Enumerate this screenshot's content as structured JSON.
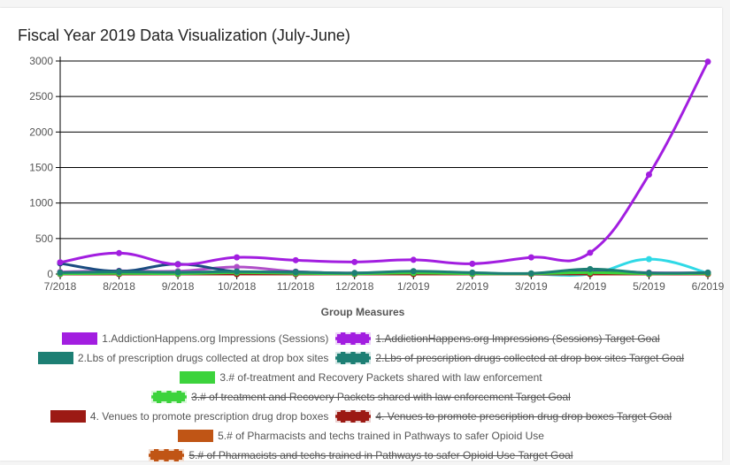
{
  "page_title": "Fiscal Year 2019 Data Visualization (July-June)",
  "chart_data": {
    "type": "line",
    "title": "Fiscal Year 2019 Data Visualization (July-June)",
    "xlabel": "Group Measures",
    "ylabel": "",
    "ylim": [
      0,
      3000
    ],
    "yticks": [
      0,
      500,
      1000,
      1500,
      2000,
      2500,
      3000
    ],
    "ytick_labels": [
      "0",
      "500",
      "1000",
      "1500",
      "2000",
      "2500",
      "3000"
    ],
    "grid": true,
    "legend_position": "bottom",
    "categories": [
      "7/2018",
      "8/2018",
      "9/2018",
      "10/2018",
      "11/2018",
      "12/2018",
      "1/2019",
      "2/2019",
      "3/2019",
      "4/2019",
      "5/2019",
      "6/2019"
    ],
    "series": [
      {
        "name": "1.AddictionHappens.org Impressions (Sessions)",
        "color": "#a21ee0",
        "hidden": false,
        "values": [
          165,
          295,
          135,
          235,
          195,
          170,
          200,
          145,
          235,
          300,
          1400,
          2990
        ]
      },
      {
        "name": "1.AddictionHappens.org Impressions (Sessions) Target Goal",
        "color": "#a21ee0",
        "hidden": true,
        "values": [
          null,
          null,
          null,
          null,
          null,
          null,
          null,
          null,
          null,
          null,
          null,
          null
        ]
      },
      {
        "name": "2.Lbs of prescription drugs collected at drop box sites",
        "color": "#1d7f74",
        "hidden": false,
        "values": [
          20,
          30,
          25,
          35,
          25,
          15,
          40,
          20,
          10,
          70,
          15,
          20
        ]
      },
      {
        "name": "2.Lbs of prescription drugs collected at drop box sites Target Goal",
        "color": "#1d7f74",
        "hidden": true,
        "values": [
          null,
          null,
          null,
          null,
          null,
          null,
          null,
          null,
          null,
          null,
          null,
          null
        ]
      },
      {
        "name": "3.# of-treatment and Recovery Packets shared with law enforcement",
        "color": "#3cd33c",
        "hidden": false,
        "values": [
          5,
          10,
          5,
          20,
          10,
          5,
          15,
          5,
          5,
          20,
          5,
          10
        ]
      },
      {
        "name": "3.# of treatment and Recovery Packets shared with law enforcement Target Goal",
        "color": "#3cd33c",
        "hidden": true,
        "values": [
          null,
          null,
          null,
          null,
          null,
          null,
          null,
          null,
          null,
          null,
          null,
          null
        ]
      },
      {
        "name": "4. Venues to promote prescription drug drop boxes",
        "color": "#9c1a14",
        "hidden": false,
        "values": [
          0,
          0,
          0,
          0,
          0,
          0,
          0,
          0,
          0,
          0,
          0,
          0
        ]
      },
      {
        "name": "4. Venues to promote prescription drug drop boxes Target Goal",
        "color": "#9c1a14",
        "hidden": true,
        "values": [
          null,
          null,
          null,
          null,
          null,
          null,
          null,
          null,
          null,
          null,
          null,
          null
        ]
      },
      {
        "name": "5.# of Pharmacists and techs trained in Pathways to safer Opioid Use",
        "color": "#c05515",
        "hidden": false,
        "values": [
          0,
          0,
          0,
          0,
          0,
          0,
          0,
          0,
          0,
          0,
          0,
          0
        ]
      },
      {
        "name": "5.# of Pharmacists and techs trained in Pathways to safer Opioid Use Target Goal",
        "color": "#c05515",
        "hidden": true,
        "values": [
          null,
          null,
          null,
          null,
          null,
          null,
          null,
          null,
          null,
          null,
          null,
          null
        ]
      },
      {
        "color": "#1a4c80",
        "hidden": false,
        "legend": false,
        "values": [
          150,
          40,
          140,
          35,
          30,
          10,
          30,
          10,
          5,
          30,
          10,
          15
        ]
      },
      {
        "color": "#b04fc8",
        "hidden": false,
        "legend": false,
        "values": [
          30,
          45,
          40,
          100,
          35,
          15,
          35,
          15,
          5,
          55,
          20,
          20
        ]
      },
      {
        "color": "#2fd9e6",
        "hidden": false,
        "legend": false,
        "values": [
          0,
          0,
          0,
          0,
          0,
          0,
          0,
          0,
          0,
          0,
          210,
          15
        ]
      }
    ]
  }
}
